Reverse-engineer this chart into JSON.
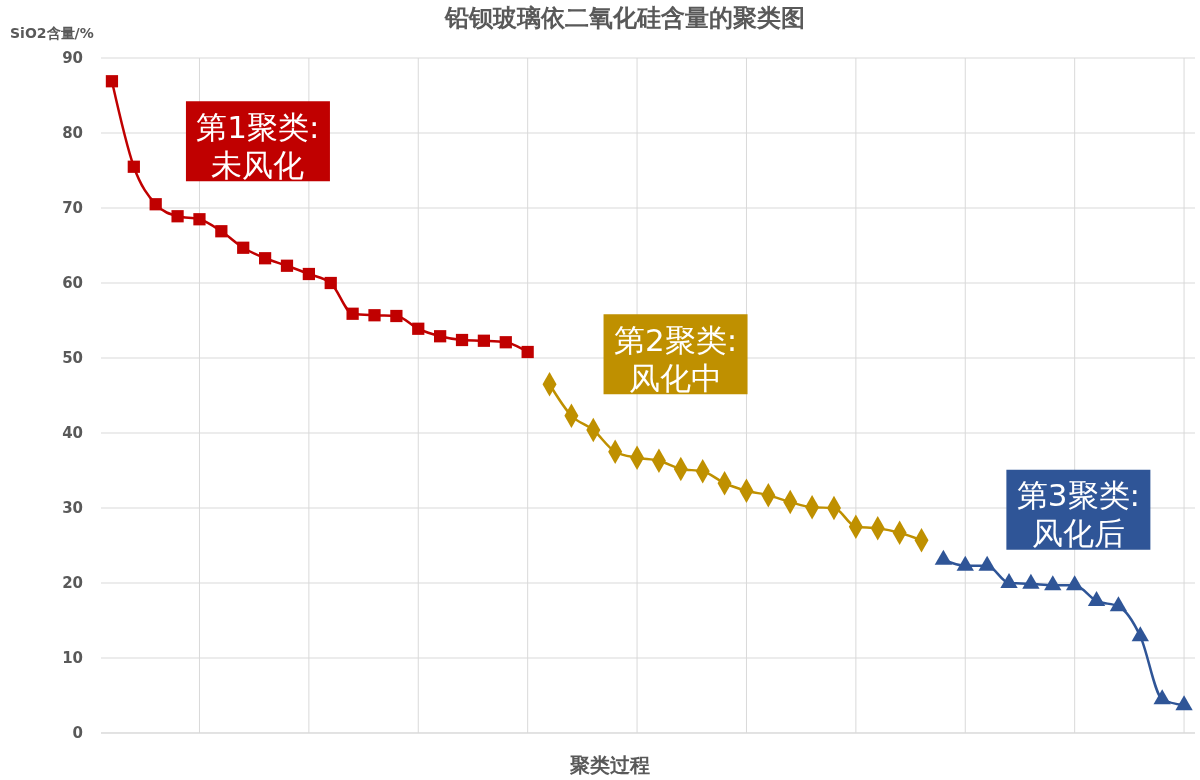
{
  "chart_data": {
    "type": "line",
    "title": "铅钡玻璃依二氧化硅含量的聚类图",
    "xlabel": "聚类过程",
    "ylabel": "SiO2含量/%",
    "categories": [
      null,
      null,
      null,
      null,
      null,
      null,
      null,
      null,
      null,
      null,
      null,
      null,
      null,
      null,
      null,
      null,
      null,
      null,
      null,
      null,
      null,
      null,
      null,
      null,
      null,
      null,
      null,
      null,
      null,
      null,
      null,
      null,
      null,
      null,
      null,
      null,
      null,
      null,
      null,
      null,
      null,
      null,
      null,
      null,
      null,
      null,
      null,
      null,
      null,
      null
    ],
    "ylim": [
      0,
      90
    ],
    "yticks": [
      0,
      10,
      20,
      30,
      40,
      50,
      60,
      70,
      80,
      90
    ],
    "grid": true,
    "series": [
      {
        "name": "第1聚类: 未风化",
        "color": "#c00000",
        "marker": "square",
        "values": [
          86.9,
          75.5,
          70.5,
          68.9,
          68.5,
          66.9,
          64.7,
          63.3,
          62.3,
          61.2,
          60.0,
          55.9,
          55.7,
          55.6,
          53.9,
          52.9,
          52.4,
          52.3,
          52.1,
          50.8,
          null,
          null,
          null,
          null,
          null,
          null,
          null,
          null,
          null,
          null,
          null,
          null,
          null,
          null,
          null,
          null,
          null,
          null,
          null,
          null,
          null,
          null,
          null,
          null,
          null,
          null,
          null,
          null,
          null,
          null
        ]
      },
      {
        "name": "第2聚类: 风化中",
        "color": "#bf9000",
        "marker": "diamond",
        "values": [
          null,
          null,
          null,
          null,
          null,
          null,
          null,
          null,
          null,
          null,
          null,
          null,
          null,
          null,
          null,
          null,
          null,
          null,
          null,
          null,
          46.5,
          42.3,
          40.4,
          37.5,
          36.7,
          36.3,
          35.2,
          34.9,
          33.3,
          32.3,
          31.7,
          30.8,
          30.1,
          30.0,
          27.5,
          27.3,
          26.7,
          25.7,
          null,
          null,
          null,
          null,
          null,
          null,
          null,
          null,
          null,
          null,
          null,
          null
        ]
      },
      {
        "name": "第3聚类: 风化后",
        "color": "#2f5597",
        "marker": "triangle",
        "values": [
          null,
          null,
          null,
          null,
          null,
          null,
          null,
          null,
          null,
          null,
          null,
          null,
          null,
          null,
          null,
          null,
          null,
          null,
          null,
          null,
          null,
          null,
          null,
          null,
          null,
          null,
          null,
          null,
          null,
          null,
          null,
          null,
          null,
          null,
          null,
          null,
          null,
          null,
          23.1,
          22.3,
          22.3,
          20.0,
          19.9,
          19.7,
          19.7,
          17.6,
          16.9,
          12.9,
          4.5,
          3.7
        ]
      }
    ]
  }
}
